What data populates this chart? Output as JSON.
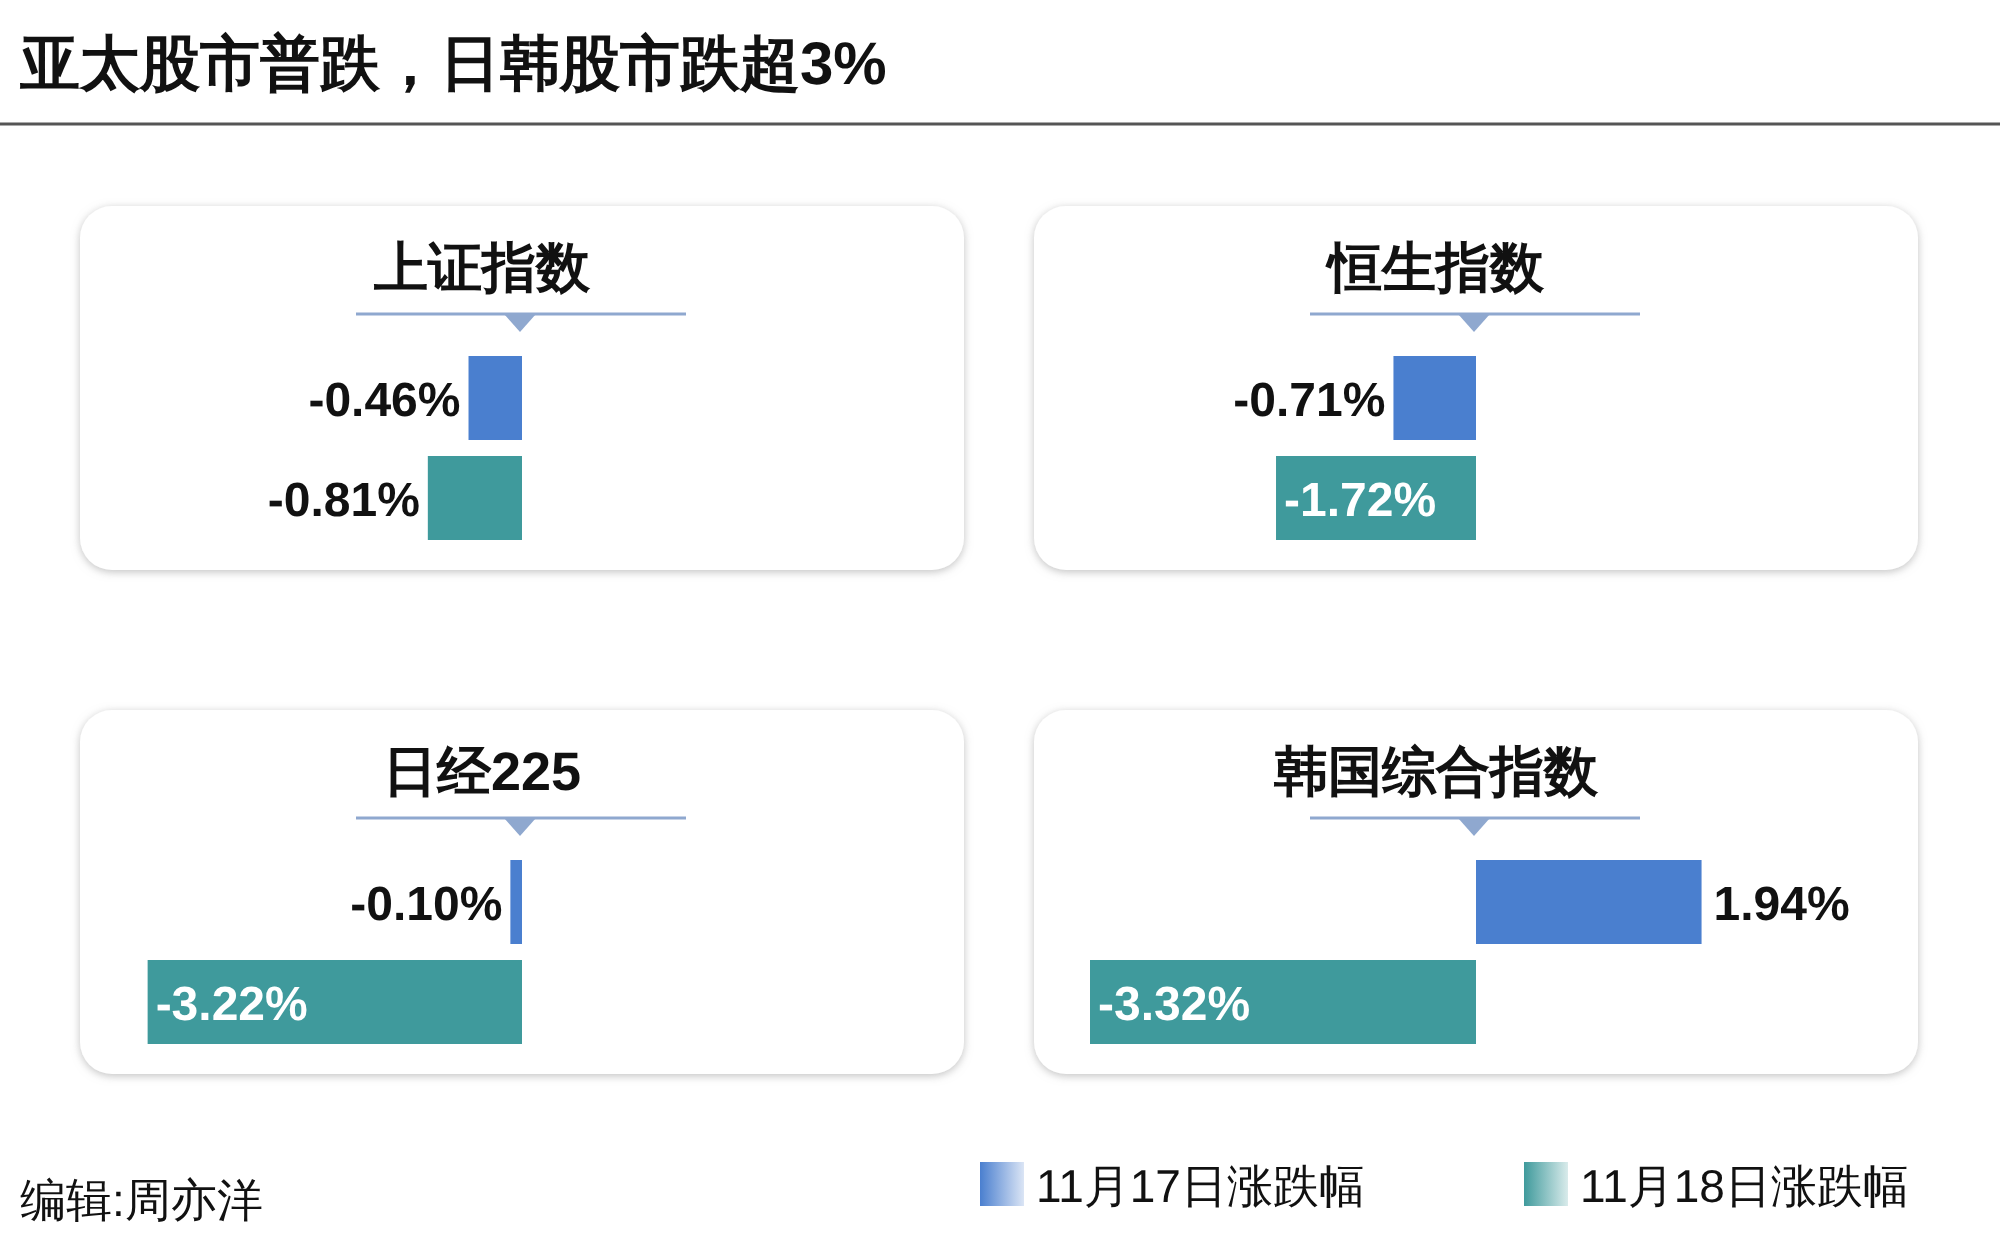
{
  "chart_data": [
    {
      "type": "other",
      "title": "亚太股市普跌，日韩股市跌超3%",
      "annotations": [
        "编辑:周亦洋"
      ]
    },
    {
      "type": "bar",
      "orientation": "horizontal",
      "title": "上证指数",
      "categories": [
        null
      ],
      "series": [
        {
          "color": "#4a7fcf",
          "values": [
            -0.46
          ],
          "value_labels": [
            "-0.46%"
          ]
        },
        {
          "color": "#3f9a9c",
          "values": [
            -0.81
          ],
          "value_labels": [
            "-0.81%"
          ]
        }
      ]
    },
    {
      "type": "bar",
      "orientation": "horizontal",
      "title": "恒生指数",
      "categories": [
        null
      ],
      "series": [
        {
          "color": "#4a7fcf",
          "values": [
            -0.71
          ],
          "value_labels": [
            "-0.71%"
          ]
        },
        {
          "color": "#3f9a9c",
          "values": [
            -1.72
          ],
          "value_labels": [
            "-1.72%"
          ]
        }
      ]
    },
    {
      "type": "bar",
      "orientation": "horizontal",
      "title": "日经225",
      "categories": [
        null
      ],
      "series": [
        {
          "color": "#4a7fcf",
          "values": [
            -0.1
          ],
          "value_labels": [
            "-0.10%"
          ]
        },
        {
          "color": "#3f9a9c",
          "values": [
            -3.22
          ],
          "value_labels": [
            "-3.22%"
          ]
        }
      ]
    },
    {
      "type": "bar",
      "orientation": "horizontal",
      "title": "韩国综合指数",
      "categories": [
        null
      ],
      "legend": "bottom",
      "series": [
        {
          "name": "11月17日涨跌幅",
          "color": "#4a7fcf",
          "values": [
            1.94
          ],
          "value_labels": [
            "1.94%"
          ]
        },
        {
          "name": "11月18日涨跌幅",
          "color": "#3f9a9c",
          "values": [
            -3.32
          ],
          "value_labels": [
            "-3.32%"
          ]
        }
      ]
    }
  ]
}
